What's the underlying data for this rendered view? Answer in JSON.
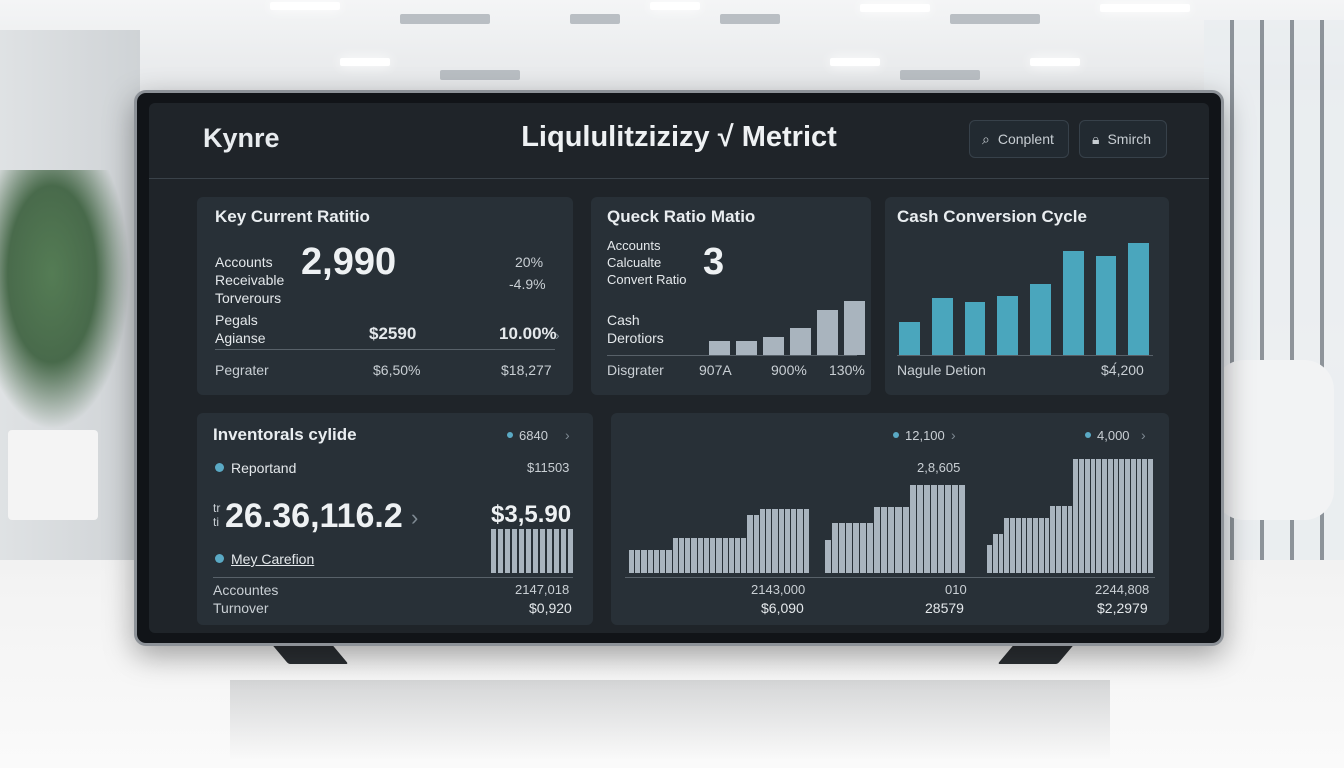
{
  "header": {
    "brand": "Kynre",
    "title": "Liqululitzizizy √ Metrict",
    "buttons": [
      {
        "label": "Conplent",
        "icon": "search-icon"
      },
      {
        "label": "Smirch",
        "icon": "lock-icon"
      }
    ]
  },
  "card_current": {
    "title": "Key Current Ratitio",
    "label_lines": [
      "Accounts",
      "Receivable",
      "Torverours"
    ],
    "value": "2,990",
    "pct_top": "20%",
    "pct_bottom": "-4.9%",
    "row2_label_lines": [
      "Pegals",
      "Agianse"
    ],
    "row2_value": "$2590",
    "row2_pct": "10.00%",
    "row3_label": "Pegrater",
    "row3_value_a": "$6,50%",
    "row3_value_b": "$18,277"
  },
  "card_quick": {
    "title": "Queck Ratio Matio",
    "label_lines": [
      "Accounts",
      "Calcualte",
      "Convert Ratio"
    ],
    "value": "3",
    "cash_lines": [
      "Cash",
      "Derotiors"
    ],
    "footer": [
      "Disgrater",
      "907A",
      "900%",
      "130%"
    ],
    "bar_values": [
      3,
      3,
      4,
      6,
      10,
      12
    ]
  },
  "card_cash": {
    "title": "Cash Conversion Cycle",
    "bar_values": [
      30,
      52,
      48,
      54,
      65,
      95,
      90,
      102
    ],
    "footer_left": "Nagule Detion",
    "footer_right": "$4́,200"
  },
  "card_inventory": {
    "title": "Inventorals cylide",
    "top_value": "6840",
    "item1_label": "Reportand",
    "item1_value": "$11503",
    "prefix_lines": [
      "tr",
      "ti"
    ],
    "big_value": "26.36,116.2",
    "right_value": "$3,5.90",
    "item2_label": "Mey Carefion",
    "bottom_label_lines": [
      "Accountes",
      "Turnover"
    ],
    "bottom_values": [
      "2147,018",
      "$0,920"
    ],
    "bar_values": [
      10,
      10,
      10,
      10,
      10,
      10,
      10,
      10,
      10,
      10,
      10,
      10
    ]
  },
  "card_charts": {
    "chart1": {
      "footer_values": [
        "2143,000",
        "$6,090"
      ],
      "bar_values": [
        8,
        8,
        8,
        8,
        8,
        8,
        8,
        12,
        12,
        12,
        12,
        12,
        12,
        12,
        12,
        12,
        12,
        12,
        12,
        20,
        20,
        22,
        22,
        22,
        22,
        22,
        22,
        22,
        22
      ]
    },
    "chart2": {
      "legend": "12,100",
      "above_value": "2,8,605",
      "footer_values": [
        "010",
        "28579"
      ],
      "bar_values": [
        12,
        18,
        18,
        18,
        18,
        18,
        18,
        24,
        24,
        24,
        24,
        24,
        32,
        32,
        32,
        32,
        32,
        32,
        32,
        32
      ]
    },
    "chart3": {
      "legend": "4,000",
      "footer_values": [
        "2244,808",
        "$2,2979"
      ],
      "bar_values": [
        14,
        20,
        20,
        28,
        28,
        28,
        28,
        28,
        28,
        28,
        28,
        34,
        34,
        34,
        34,
        58,
        58,
        58,
        58,
        58,
        58,
        58,
        58,
        58,
        58,
        58,
        58,
        58,
        58
      ]
    }
  },
  "colors": {
    "screen_bg": "#1f2429",
    "card_bg": "#283037",
    "accent_teal": "#4aa6bd",
    "bar_grey": "#9aa9b6"
  }
}
